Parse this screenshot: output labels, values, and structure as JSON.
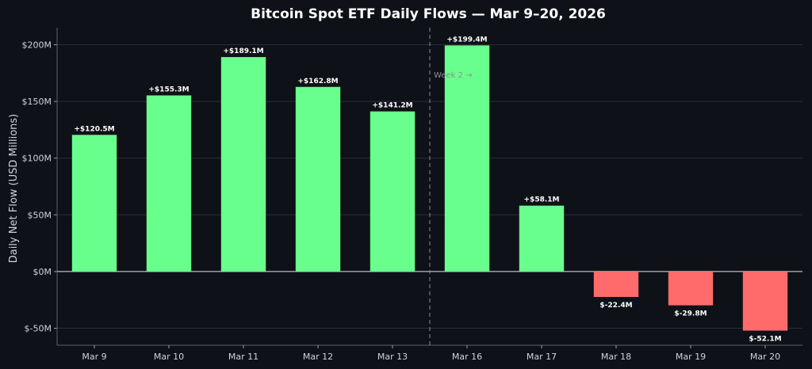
{
  "chart_data": {
    "type": "bar",
    "title": "Bitcoin Spot ETF Daily Flows — Mar 9–20, 2026",
    "xlabel": "",
    "ylabel": "Daily Net Flow (USD Millions)",
    "ylim": [
      -65,
      215
    ],
    "yticks": [
      -50,
      0,
      50,
      100,
      150,
      200
    ],
    "ytick_labels": [
      "$-50M",
      "$0M",
      "$50M",
      "$100M",
      "$150M",
      "$200M"
    ],
    "categories": [
      "Mar 9",
      "Mar 10",
      "Mar 11",
      "Mar 12",
      "Mar 13",
      "Mar 16",
      "Mar 17",
      "Mar 18",
      "Mar 19",
      "Mar 20"
    ],
    "values": [
      120.5,
      155.3,
      189.1,
      162.8,
      141.2,
      199.4,
      58.1,
      -22.4,
      -29.8,
      -52.1
    ],
    "value_labels": [
      "+$120.5M",
      "+$155.3M",
      "+$189.1M",
      "+$162.8M",
      "+$141.2M",
      "+$199.4M",
      "+$58.1M",
      "$-22.4M",
      "$-29.8M",
      "$-52.1M"
    ],
    "colors": {
      "positive": "#69ff8c",
      "negative": "#ff6b6b",
      "background": "#0f1118",
      "grid": "#2a2e38"
    },
    "grid": true,
    "annotation": {
      "text": "Week 2 →",
      "after_category_index": 4
    }
  }
}
